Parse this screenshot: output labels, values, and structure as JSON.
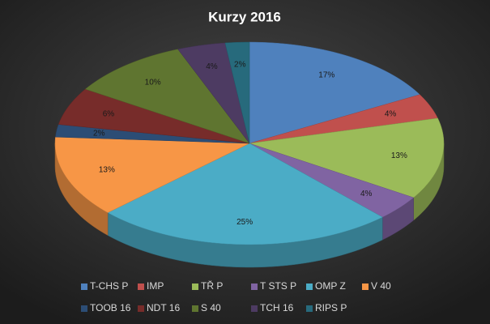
{
  "chart_data": {
    "type": "pie",
    "title": "Kurzy  2016",
    "categories": [
      "T-CHS P",
      "IMP",
      "TŘ P",
      "T STS P",
      "OMP Z",
      "V 40",
      "TOOB 16",
      "NDT 16",
      "S 40",
      "TCH 16",
      "RIPS P"
    ],
    "values": [
      17,
      4,
      13,
      4,
      25,
      13,
      2,
      6,
      10,
      4,
      2
    ],
    "value_labels": [
      "17%",
      "4%",
      "13%",
      "4%",
      "25%",
      "13%",
      "2%",
      "6%",
      "10%",
      "4%",
      "2%"
    ],
    "colors": [
      "#4f81bd",
      "#c0504d",
      "#9bbb59",
      "#8064a2",
      "#4bacc6",
      "#f79646",
      "#2c4d75",
      "#772c2a",
      "#5f7530",
      "#4d3b62",
      "#276a7c"
    ],
    "legend": "bottom"
  }
}
